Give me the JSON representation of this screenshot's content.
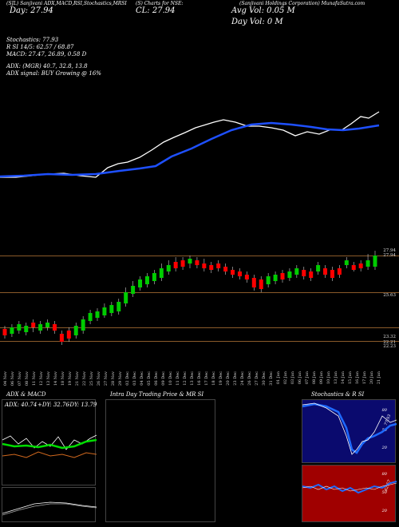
{
  "header": {
    "ticker_line": "(SJL) Sanjivani ADX,MACD,RSI,Stochastics,MRSI",
    "mid_line": "(S) Charts for NSE:",
    "company_line": "(Sanjivani Holdings Corporation) MunafaSutra.com",
    "close_label": "CL: 27.94",
    "cl_prefix": "Cl",
    "day_label": "Day: 27.94",
    "avg_vol": "Avg Vol: 0.05 M",
    "day_vol": "Day Vol: 0 M"
  },
  "info": {
    "stochastics": "Stochastics: 77.93",
    "rsi": "R         SI 14/5: 62.57 / 68.87",
    "macd": "MACD: 27.47,  26.89,  0.58  D",
    "adx": "ADX:                         (MGR) 40.7,  32.8,  13.8",
    "adx_signal": "ADX  signal:                    BUY Growing @ 16%"
  },
  "price_levels": [
    "27.94",
    "27.94",
    "25.63",
    "23.32",
    "22.21",
    "22.23"
  ],
  "x_dates": [
    "04 Nov",
    "06 Nov",
    "07 Nov",
    "08 Nov",
    "11 Nov",
    "12 Nov",
    "13 Nov",
    "14 Nov",
    "18 Nov",
    "19 Nov",
    "21 Nov",
    "22 Nov",
    "25 Nov",
    "26 Nov",
    "27 Nov",
    "28 Nov",
    "29 Nov",
    "02 Dec",
    "03 Dec",
    "04 Dec",
    "05 Dec",
    "06 Dec",
    "09 Dec",
    "10 Dec",
    "11 Dec",
    "12 Dec",
    "13 Dec",
    "16 Dec",
    "17 Dec",
    "18 Dec",
    "19 Dec",
    "20 Dec",
    "23 Dec",
    "24 Dec",
    "26 Dec",
    "27 Dec",
    "30 Dec",
    "31 Dec",
    "01 Jan",
    "02 Jan",
    "03 Jan",
    "06 Jan",
    "07 Jan",
    "08 Jan",
    "09 Jan",
    "10 Jan",
    "13 Jan",
    "14 Jan",
    "15 Jan",
    "16 Jan",
    "17 Jan",
    "20 Jan",
    "21 Jan"
  ],
  "panels": {
    "adx_title": "ADX  & MACD",
    "adx_value": "ADX: 40.74",
    "dip": "+DY: 32.76",
    "dim": "-DY: 13.79",
    "intraday_title": "Intra  Day Trading Price  & MR         SI",
    "stoch_title": "Stochastics & R          SI",
    "stoch_levels": [
      "80",
      "50",
      "20"
    ],
    "stoch_value": "77.93",
    "rsi_levels": [
      "80",
      "50",
      "20"
    ],
    "rsi_value": "62.57"
  },
  "colors": {
    "up": "#00cc00",
    "down": "#ff0000",
    "ma": "#1e50ff",
    "price_line": "#ffffff",
    "stoch_bg": "#0a0a6e",
    "rsi_bg": "#a00000"
  }
}
